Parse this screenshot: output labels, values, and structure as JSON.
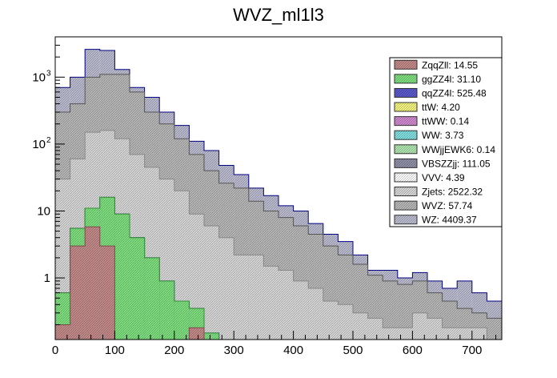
{
  "chart_data": {
    "type": "bar",
    "stacked": true,
    "title": "WVZ_ml1l3",
    "xlabel": "",
    "ylabel": "",
    "xlim": [
      0,
      750
    ],
    "ylim": [
      0.12,
      4000
    ],
    "yscale": "log",
    "bin_width": 25,
    "x_ticks": [
      "0",
      "100",
      "200",
      "300",
      "400",
      "500",
      "600",
      "700"
    ],
    "x_tick_values": [
      0,
      100,
      200,
      300,
      400,
      500,
      600,
      700
    ],
    "y_ticks": [
      "1",
      "10",
      "10²",
      "10³"
    ],
    "y_tick_labels": {
      "base": "10",
      "exponents": [
        "",
        "",
        "2",
        "3"
      ],
      "plain": [
        "1",
        "10",
        "",
        ""
      ]
    },
    "y_tick_values": [
      1,
      10,
      100,
      1000
    ],
    "legend_position": "top-right",
    "series": [
      {
        "name": "ZqqZll",
        "label": "ZqqZll: 14.55",
        "color": "#c48a8a",
        "cumulative": [
          0.2,
          3.0,
          5.8,
          3.0,
          0.01,
          0.01,
          0,
          0,
          0,
          0.18,
          0,
          0,
          0,
          0,
          0,
          0,
          0,
          0,
          0,
          0,
          0,
          0,
          0,
          0,
          0,
          0,
          0,
          0,
          0,
          0
        ]
      },
      {
        "name": "ggZZ4l",
        "label": "ggZZ4l: 31.10",
        "color": "#7fe07f",
        "cumulative": [
          0.6,
          5.5,
          11.0,
          16.0,
          9.0,
          4.0,
          2.0,
          0.9,
          0.45,
          0.35,
          0.15,
          0,
          0,
          0,
          0,
          0,
          0,
          0,
          0,
          0,
          0,
          0,
          0,
          0,
          0,
          0,
          0,
          0,
          0,
          0
        ]
      },
      {
        "name": "qqZZ4l",
        "label": "qqZZ4l: 525.48",
        "color": "#5a5acc",
        "cumulative": [
          0.6,
          5.5,
          11.0,
          16.0,
          9.0,
          4.0,
          2.0,
          0.9,
          0.45,
          0.35,
          0.15,
          0,
          0,
          0,
          0,
          0,
          0,
          0,
          0,
          0,
          0,
          0,
          0,
          0,
          0,
          0,
          0,
          0,
          0,
          0
        ]
      },
      {
        "name": "ttW",
        "label": "ttW: 4.20",
        "color": "#f5f580"
      },
      {
        "name": "ttWW",
        "label": "ttWW: 0.14",
        "color": "#d08ad0"
      },
      {
        "name": "WW",
        "label": "WW: 3.73",
        "color": "#80e0e0"
      },
      {
        "name": "WWjjEWK6",
        "label": "WWjjEWK6: 0.14",
        "color": "#b0e6b0"
      },
      {
        "name": "VBSZZjj",
        "label": "VBSZZjj: 111.05",
        "color": "#9090a8"
      },
      {
        "name": "VVV",
        "label": "VVV: 4.39",
        "color": "#ffffff"
      },
      {
        "name": "Zjets",
        "label": "Zjets: 2522.32",
        "color": "#d8d8d8",
        "cumulative": [
          30,
          60,
          150,
          160,
          120,
          70,
          45,
          30,
          20,
          9,
          6,
          4,
          2.2,
          2.2,
          1.5,
          1.3,
          0.9,
          0.7,
          0.45,
          0.4,
          0.3,
          0.25,
          0.18,
          0.18,
          0.3,
          0.25,
          0.18,
          0.18,
          0.18,
          0.12
        ]
      },
      {
        "name": "WVZ",
        "label": "WVZ: 57.74",
        "color": "#b8b8b8",
        "cumulative": [
          300,
          400,
          1000,
          1100,
          1100,
          600,
          300,
          200,
          120,
          70,
          40,
          26,
          22,
          14,
          10,
          8,
          6,
          4.5,
          3,
          2.2,
          1.6,
          1.1,
          0.9,
          0.8,
          0.9,
          0.6,
          0.45,
          0.35,
          0.3,
          0.25
        ]
      },
      {
        "name": "WZ",
        "label": "WZ: 4409.37",
        "color": "#bcbcd0",
        "cumulative": [
          700,
          1000,
          2600,
          2500,
          1300,
          700,
          500,
          300,
          190,
          110,
          80,
          48,
          35,
          22,
          17,
          12,
          10,
          6.5,
          4.5,
          3.5,
          2.2,
          1.3,
          1.3,
          1.0,
          1.2,
          0.9,
          0.7,
          0.9,
          0.6,
          0.45
        ]
      }
    ]
  }
}
